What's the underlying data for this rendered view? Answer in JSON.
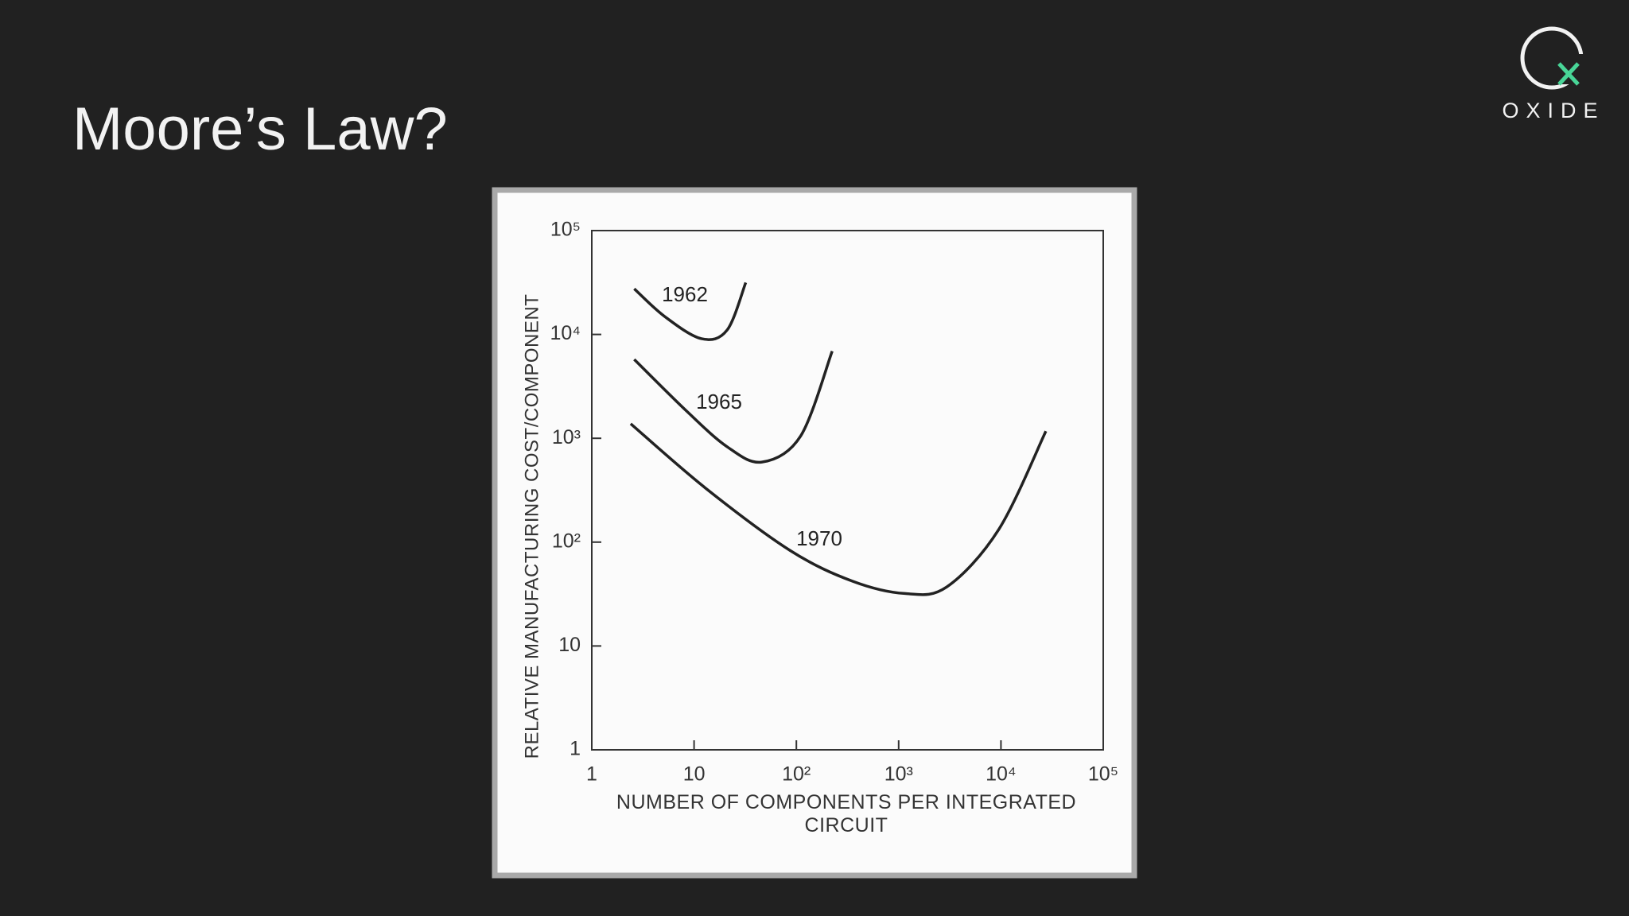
{
  "slide_title": "Moore’s Law?",
  "logo_text": "OXIDE",
  "chart_data": {
    "type": "line",
    "x_label": "NUMBER OF COMPONENTS PER INTEGRATED CIRCUIT",
    "y_label": "RELATIVE MANUFACTURING COST/COMPONENT",
    "log_x": true,
    "log_y": true,
    "xlim": [
      1,
      100000
    ],
    "ylim": [
      1,
      100000
    ],
    "xticks": [
      1,
      10,
      {
        "value": 100,
        "label": "10²"
      },
      {
        "value": 1000,
        "label": "10³"
      },
      {
        "value": 10000,
        "label": "10⁴"
      },
      {
        "value": 100000,
        "label": "10⁵"
      }
    ],
    "yticks": [
      1,
      10,
      {
        "value": 100,
        "label": "10²"
      },
      {
        "value": 1000,
        "label": "10³"
      },
      {
        "value": 10000,
        "label": "10⁴"
      },
      {
        "value": 100000,
        "label": "10⁵"
      }
    ],
    "series": [
      {
        "name": "1962",
        "color": "#222222",
        "x": [
          2.6,
          5.2,
          11.8,
          21,
          32
        ],
        "values": [
          27500,
          14800,
          9100,
          11000,
          31600
        ]
      },
      {
        "name": "1965",
        "color": "#222222",
        "x": [
          2.6,
          8.3,
          21,
          46,
          110,
          224
        ],
        "values": [
          5750,
          1860,
          830,
          590,
          1050,
          6900
        ]
      },
      {
        "name": "1970",
        "color": "#222222",
        "x": [
          2.4,
          13,
          87,
          355,
          1150,
          2950,
          9500,
          27500
        ],
        "values": [
          1380,
          330,
          83,
          42,
          32,
          37,
          132,
          1170
        ]
      }
    ]
  }
}
